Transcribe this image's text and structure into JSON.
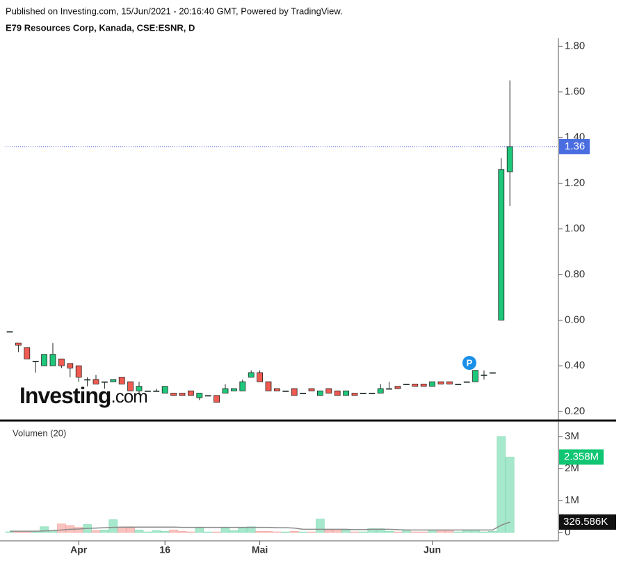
{
  "header": {
    "published": "Published on Investing.com, 15/Jun/2021 - 20:16:40 GMT, Powered by TradingView.",
    "symbol": "E79 Resources Corp, Kanada, CSE:ESNR, D",
    "logo": "Investing",
    "logo_suffix": ".com"
  },
  "chart_data": [
    {
      "type": "candlestick",
      "annotation": "P",
      "categories": [
        null,
        null,
        null,
        null,
        null,
        null,
        null,
        null,
        "Apr",
        null,
        null,
        null,
        null,
        null,
        null,
        null,
        null,
        null,
        "16",
        null,
        null,
        null,
        null,
        null,
        null,
        null,
        null,
        null,
        null,
        "Mai",
        null,
        null,
        null,
        null,
        null,
        null,
        null,
        null,
        null,
        null,
        null,
        null,
        null,
        null,
        null,
        null,
        null,
        null,
        null,
        "Jun",
        null,
        null,
        null,
        null,
        null,
        null,
        null,
        null,
        null
      ],
      "open": [
        0.55,
        0.5,
        0.48,
        0.42,
        0.4,
        0.4,
        0.43,
        0.41,
        0.4,
        0.34,
        0.34,
        0.33,
        0.33,
        0.35,
        0.33,
        0.29,
        0.29,
        0.29,
        0.28,
        0.28,
        0.28,
        0.29,
        0.26,
        0.27,
        0.27,
        0.28,
        0.29,
        0.29,
        0.35,
        0.37,
        0.33,
        0.3,
        0.29,
        0.3,
        0.28,
        0.3,
        0.27,
        0.3,
        0.29,
        0.27,
        0.28,
        0.28,
        0.28,
        0.28,
        0.3,
        0.31,
        0.32,
        0.32,
        0.32,
        0.31,
        0.33,
        0.33,
        0.32,
        0.33,
        0.33,
        0.36,
        0.37,
        0.6,
        1.25
      ],
      "high": [
        0.55,
        0.5,
        0.48,
        0.42,
        0.45,
        0.5,
        0.43,
        0.41,
        0.4,
        0.35,
        0.36,
        0.33,
        0.34,
        0.35,
        0.33,
        0.33,
        0.29,
        0.3,
        0.31,
        0.28,
        0.28,
        0.29,
        0.28,
        0.27,
        0.27,
        0.32,
        0.3,
        0.34,
        0.38,
        0.38,
        0.33,
        0.3,
        0.29,
        0.3,
        0.28,
        0.3,
        0.29,
        0.3,
        0.29,
        0.29,
        0.28,
        0.28,
        0.28,
        0.32,
        0.33,
        0.31,
        0.32,
        0.32,
        0.32,
        0.33,
        0.33,
        0.33,
        0.32,
        0.33,
        0.38,
        0.38,
        0.37,
        1.31,
        1.65
      ],
      "low": [
        0.55,
        0.46,
        0.43,
        0.37,
        0.4,
        0.4,
        0.39,
        0.35,
        0.33,
        0.31,
        0.32,
        0.3,
        0.33,
        0.32,
        0.29,
        0.28,
        0.29,
        0.29,
        0.28,
        0.27,
        0.27,
        0.27,
        0.25,
        0.27,
        0.24,
        0.28,
        0.29,
        0.29,
        0.35,
        0.33,
        0.29,
        0.29,
        0.29,
        0.27,
        0.28,
        0.29,
        0.27,
        0.28,
        0.27,
        0.27,
        0.27,
        0.28,
        0.28,
        0.28,
        0.3,
        0.3,
        0.32,
        0.31,
        0.31,
        0.31,
        0.32,
        0.32,
        0.32,
        0.33,
        0.33,
        0.34,
        0.37,
        0.6,
        1.1
      ],
      "close": [
        0.55,
        0.49,
        0.43,
        0.42,
        0.45,
        0.45,
        0.4,
        0.39,
        0.35,
        0.34,
        0.32,
        0.33,
        0.34,
        0.32,
        0.29,
        0.31,
        0.29,
        0.29,
        0.31,
        0.27,
        0.27,
        0.27,
        0.28,
        0.27,
        0.24,
        0.3,
        0.3,
        0.33,
        0.37,
        0.33,
        0.29,
        0.29,
        0.29,
        0.27,
        0.28,
        0.29,
        0.29,
        0.28,
        0.27,
        0.29,
        0.27,
        0.28,
        0.28,
        0.3,
        0.3,
        0.3,
        0.32,
        0.31,
        0.31,
        0.33,
        0.32,
        0.32,
        0.32,
        0.33,
        0.38,
        0.36,
        0.37,
        1.26,
        1.36
      ],
      "ylim": [
        0.163,
        1.85
      ],
      "yticks": [
        {
          "value": 0.2,
          "label": "0.20"
        },
        {
          "value": 0.4,
          "label": "0.40"
        },
        {
          "value": 0.6,
          "label": "0.60"
        },
        {
          "value": 0.8,
          "label": "0.80"
        },
        {
          "value": 1.0,
          "label": "1.00"
        },
        {
          "value": 1.2,
          "label": "1.20"
        },
        {
          "value": 1.4,
          "label": "1.40"
        },
        {
          "value": 1.6,
          "label": "1.60"
        },
        {
          "value": 1.8,
          "label": "1.80"
        }
      ],
      "up_color": "#1ec77a",
      "down_color": "#f05a50"
    },
    {
      "type": "bar",
      "title": "Volumen (20)",
      "values": [
        20000,
        20000,
        20000,
        20000,
        180000,
        50000,
        270000,
        220000,
        160000,
        250000,
        60000,
        80000,
        400000,
        170000,
        150000,
        80000,
        20000,
        60000,
        40000,
        80000,
        40000,
        20000,
        160000,
        20000,
        20000,
        160000,
        60000,
        160000,
        180000,
        40000,
        40000,
        20000,
        20000,
        40000,
        20000,
        20000,
        420000,
        80000,
        100000,
        80000,
        20000,
        20000,
        120000,
        120000,
        40000,
        20000,
        80000,
        20000,
        20000,
        80000,
        80000,
        80000,
        20000,
        80000,
        80000,
        20000,
        40000,
        3000000,
        2358000
      ],
      "value_labels": [
        null,
        null,
        null,
        null,
        null,
        null,
        null,
        null,
        null,
        null,
        null,
        null,
        null,
        null,
        null,
        null,
        null,
        null,
        null,
        null,
        null,
        null,
        null,
        null,
        null,
        null,
        null,
        null,
        null,
        null,
        null,
        null,
        null,
        null,
        null,
        null,
        null,
        null,
        null,
        null,
        null,
        null,
        null,
        null,
        null,
        null,
        null,
        null,
        null,
        null,
        null,
        null,
        null,
        null,
        null,
        null,
        null,
        null,
        "2.358M"
      ],
      "ma_values": [
        40000,
        40000,
        40000,
        40000,
        50000,
        60000,
        80000,
        100000,
        110000,
        130000,
        140000,
        150000,
        160000,
        170000,
        170000,
        170000,
        170000,
        170000,
        170000,
        170000,
        160000,
        160000,
        160000,
        160000,
        160000,
        160000,
        160000,
        160000,
        160000,
        160000,
        160000,
        150000,
        150000,
        140000,
        100000,
        100000,
        100000,
        100000,
        100000,
        100000,
        90000,
        90000,
        100000,
        100000,
        100000,
        90000,
        80000,
        80000,
        80000,
        80000,
        80000,
        80000,
        80000,
        80000,
        80000,
        80000,
        80000,
        230000,
        326586
      ],
      "ma_value_labels": [
        null,
        null,
        null,
        null,
        null,
        null,
        null,
        null,
        null,
        null,
        null,
        null,
        null,
        null,
        null,
        null,
        null,
        null,
        null,
        null,
        null,
        null,
        null,
        null,
        null,
        null,
        null,
        null,
        null,
        null,
        null,
        null,
        null,
        null,
        null,
        null,
        null,
        null,
        null,
        null,
        null,
        null,
        null,
        null,
        null,
        null,
        null,
        null,
        null,
        null,
        null,
        null,
        null,
        null,
        null,
        null,
        null,
        null,
        "326.586K"
      ],
      "ylim": [
        -260000,
        3280000
      ],
      "yticks": [
        0,
        {
          "value": 1000000,
          "label": "1M"
        },
        {
          "value": 2000000,
          "label": "2M"
        },
        {
          "value": 3000000,
          "label": "3M"
        }
      ],
      "up_color": "#a6e8cb",
      "down_color": "#f9c2be",
      "ma_color": "#8a8a8a"
    }
  ]
}
